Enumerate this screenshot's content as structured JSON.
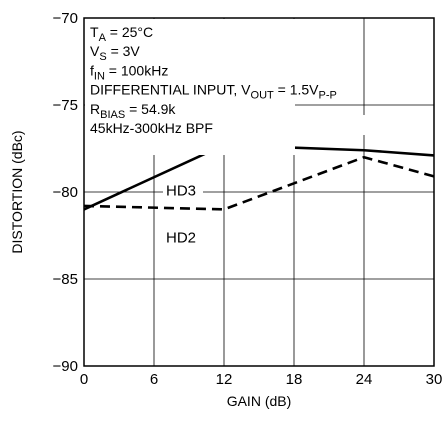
{
  "chart_data": {
    "type": "line",
    "xlabel": "GAIN (dB)",
    "ylabel": "DISTORTION (dBc)",
    "xlim": [
      0,
      30
    ],
    "ylim": [
      -90,
      -70
    ],
    "xticks": [
      0,
      6,
      12,
      18,
      24,
      30
    ],
    "yticks": [
      -70,
      -75,
      -80,
      -85,
      -90
    ],
    "grid": true,
    "annotations": [
      {
        "key": "ta",
        "parts": [
          [
            "T",
            ""
          ],
          [
            "A",
            "sub"
          ],
          [
            " = 25°C",
            ""
          ]
        ]
      },
      {
        "key": "vs",
        "parts": [
          [
            "V",
            ""
          ],
          [
            "S",
            "sub"
          ],
          [
            " = 3V",
            ""
          ]
        ]
      },
      {
        "key": "fin",
        "parts": [
          [
            "f",
            ""
          ],
          [
            "IN",
            "sub"
          ],
          [
            " = 100kHz",
            ""
          ]
        ]
      },
      {
        "key": "diff",
        "parts": [
          [
            "DIFFERENTIAL INPUT, V",
            ""
          ],
          [
            "OUT",
            "sub"
          ],
          [
            " = 1.5V",
            ""
          ],
          [
            "P-P",
            "sub"
          ]
        ]
      },
      {
        "key": "rbias",
        "parts": [
          [
            "R",
            ""
          ],
          [
            "BIAS",
            "sub"
          ],
          [
            " = 54.9k",
            ""
          ]
        ]
      },
      {
        "key": "bpf",
        "parts": [
          [
            "45kHz-300kHz BPF",
            ""
          ]
        ]
      }
    ],
    "series": [
      {
        "name": "HD3",
        "style": "solid",
        "x": [
          0,
          12,
          24,
          30
        ],
        "y": [
          -81.0,
          -77.3,
          -77.6,
          -77.9
        ]
      },
      {
        "name": "HD2",
        "style": "dashed",
        "x": [
          0,
          12,
          24,
          30
        ],
        "y": [
          -80.8,
          -81.0,
          -78.0,
          -79.1
        ]
      }
    ]
  }
}
